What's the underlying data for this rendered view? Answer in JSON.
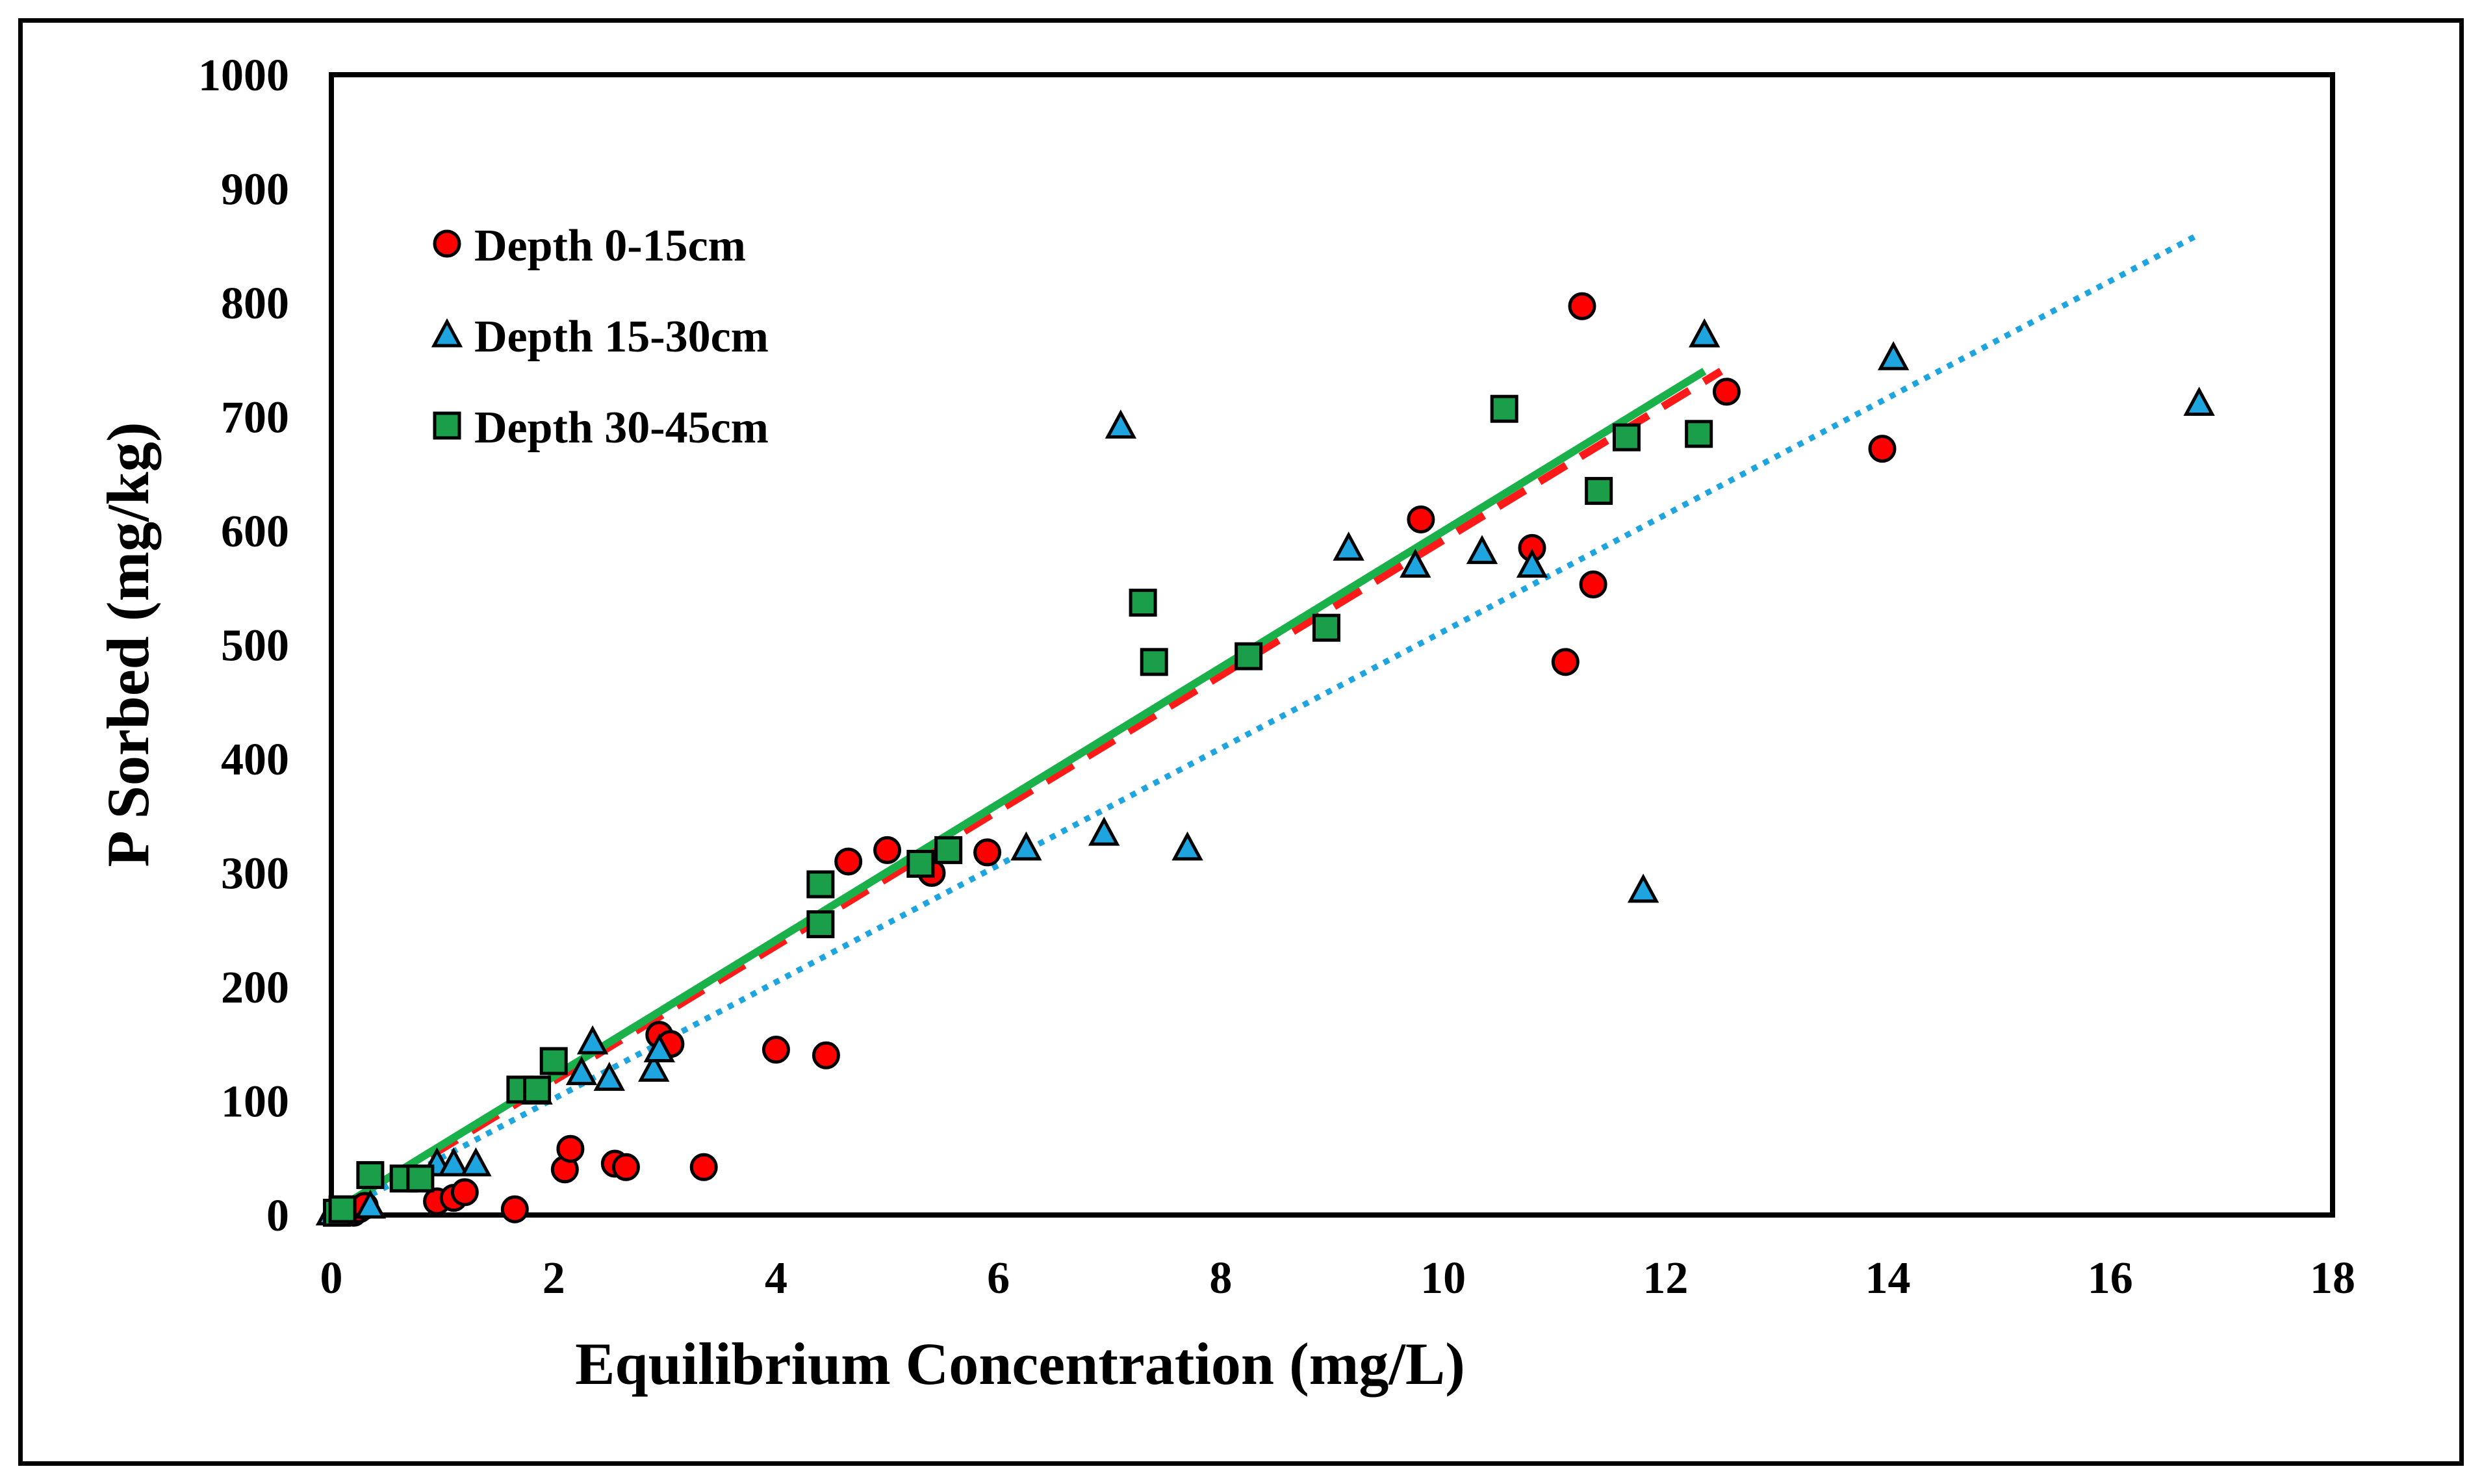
{
  "chart_data": {
    "type": "scatter",
    "title": "",
    "xlabel": "Equilibrium Concentration (mg/L)",
    "ylabel": "P Sorbed (mg/kg)",
    "xlim": [
      0,
      18
    ],
    "ylim": [
      0,
      1000
    ],
    "xticks": [
      "0",
      "2",
      "4",
      "6",
      "8",
      "10",
      "12",
      "14",
      "16",
      "18"
    ],
    "yticks": [
      "0",
      "100",
      "200",
      "300",
      "400",
      "500",
      "600",
      "700",
      "800",
      "900",
      "1000"
    ],
    "grid": false,
    "legend_position": "top-left",
    "series": [
      {
        "name": "Depth 0-15cm",
        "marker": "circle",
        "color": "#ff0000",
        "points": [
          [
            0.2,
            2
          ],
          [
            0.25,
            5
          ],
          [
            0.3,
            8
          ],
          [
            0.95,
            12
          ],
          [
            1.1,
            15
          ],
          [
            1.2,
            20
          ],
          [
            1.65,
            5
          ],
          [
            2.1,
            40
          ],
          [
            2.15,
            58
          ],
          [
            2.55,
            45
          ],
          [
            2.65,
            42
          ],
          [
            2.95,
            158
          ],
          [
            3.05,
            150
          ],
          [
            3.35,
            42
          ],
          [
            4.0,
            145
          ],
          [
            4.45,
            140
          ],
          [
            4.65,
            310
          ],
          [
            5.0,
            320
          ],
          [
            5.4,
            300
          ],
          [
            5.9,
            318
          ],
          [
            9.8,
            610
          ],
          [
            10.8,
            585
          ],
          [
            11.1,
            485
          ],
          [
            11.25,
            797
          ],
          [
            11.35,
            553
          ],
          [
            12.55,
            722
          ],
          [
            13.95,
            672
          ]
        ],
        "trendline": {
          "style": "dashed",
          "color": "#ff1a1a",
          "x": [
            0.15,
            12.5
          ],
          "y": [
            8,
            740
          ]
        }
      },
      {
        "name": "Depth 15-30cm",
        "marker": "triangle",
        "color": "#1ea5e0",
        "points": [
          [
            0.0,
            2
          ],
          [
            0.35,
            8
          ],
          [
            0.95,
            45
          ],
          [
            1.1,
            45
          ],
          [
            1.3,
            45
          ],
          [
            1.85,
            108
          ],
          [
            2.25,
            125
          ],
          [
            2.35,
            152
          ],
          [
            2.5,
            120
          ],
          [
            2.9,
            128
          ],
          [
            2.95,
            145
          ],
          [
            6.25,
            322
          ],
          [
            6.95,
            335
          ],
          [
            7.1,
            692
          ],
          [
            7.7,
            322
          ],
          [
            9.15,
            585
          ],
          [
            9.75,
            570
          ],
          [
            10.35,
            582
          ],
          [
            10.8,
            570
          ],
          [
            11.8,
            285
          ],
          [
            12.35,
            772
          ],
          [
            14.05,
            752
          ],
          [
            16.8,
            712
          ]
        ],
        "trendline": {
          "style": "dotted",
          "color": "#1ea5e0",
          "x": [
            0.05,
            16.8
          ],
          "y": [
            2,
            860
          ]
        }
      },
      {
        "name": "Depth 30-45cm",
        "marker": "square",
        "color": "#1a9e4a",
        "points": [
          [
            0.05,
            2
          ],
          [
            0.1,
            5
          ],
          [
            0.35,
            35
          ],
          [
            0.65,
            32
          ],
          [
            0.8,
            32
          ],
          [
            1.7,
            110
          ],
          [
            1.85,
            110
          ],
          [
            2.0,
            135
          ],
          [
            4.4,
            290
          ],
          [
            4.4,
            255
          ],
          [
            5.3,
            308
          ],
          [
            5.55,
            320
          ],
          [
            7.3,
            537
          ],
          [
            7.4,
            485
          ],
          [
            8.25,
            490
          ],
          [
            8.95,
            515
          ],
          [
            10.55,
            707
          ],
          [
            11.4,
            635
          ],
          [
            11.65,
            682
          ],
          [
            12.3,
            685
          ]
        ],
        "trendline": {
          "style": "solid",
          "color": "#1ab04a",
          "x": [
            0.05,
            12.35
          ],
          "y": [
            5,
            740
          ]
        }
      }
    ]
  }
}
